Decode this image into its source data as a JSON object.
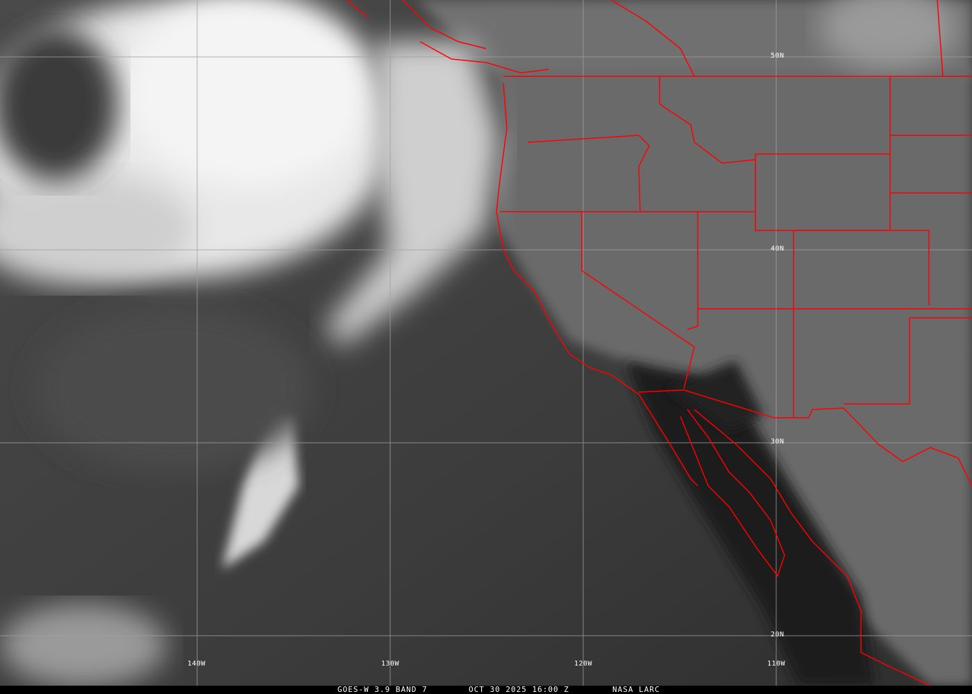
{
  "image": {
    "kind": "satellite infrared imagery",
    "boundary_color": "#ff0000",
    "grid_color": "#a0a0a0"
  },
  "grid": {
    "latitudes": [
      "50N",
      "40N",
      "30N",
      "20N"
    ],
    "longitudes": [
      "140W",
      "130W",
      "120W",
      "110W"
    ]
  },
  "caption": {
    "satellite": "GOES-W 3.9 BAND 7",
    "datetime": "OCT 30 2025 16:00 Z",
    "source": "NASA LARC"
  }
}
